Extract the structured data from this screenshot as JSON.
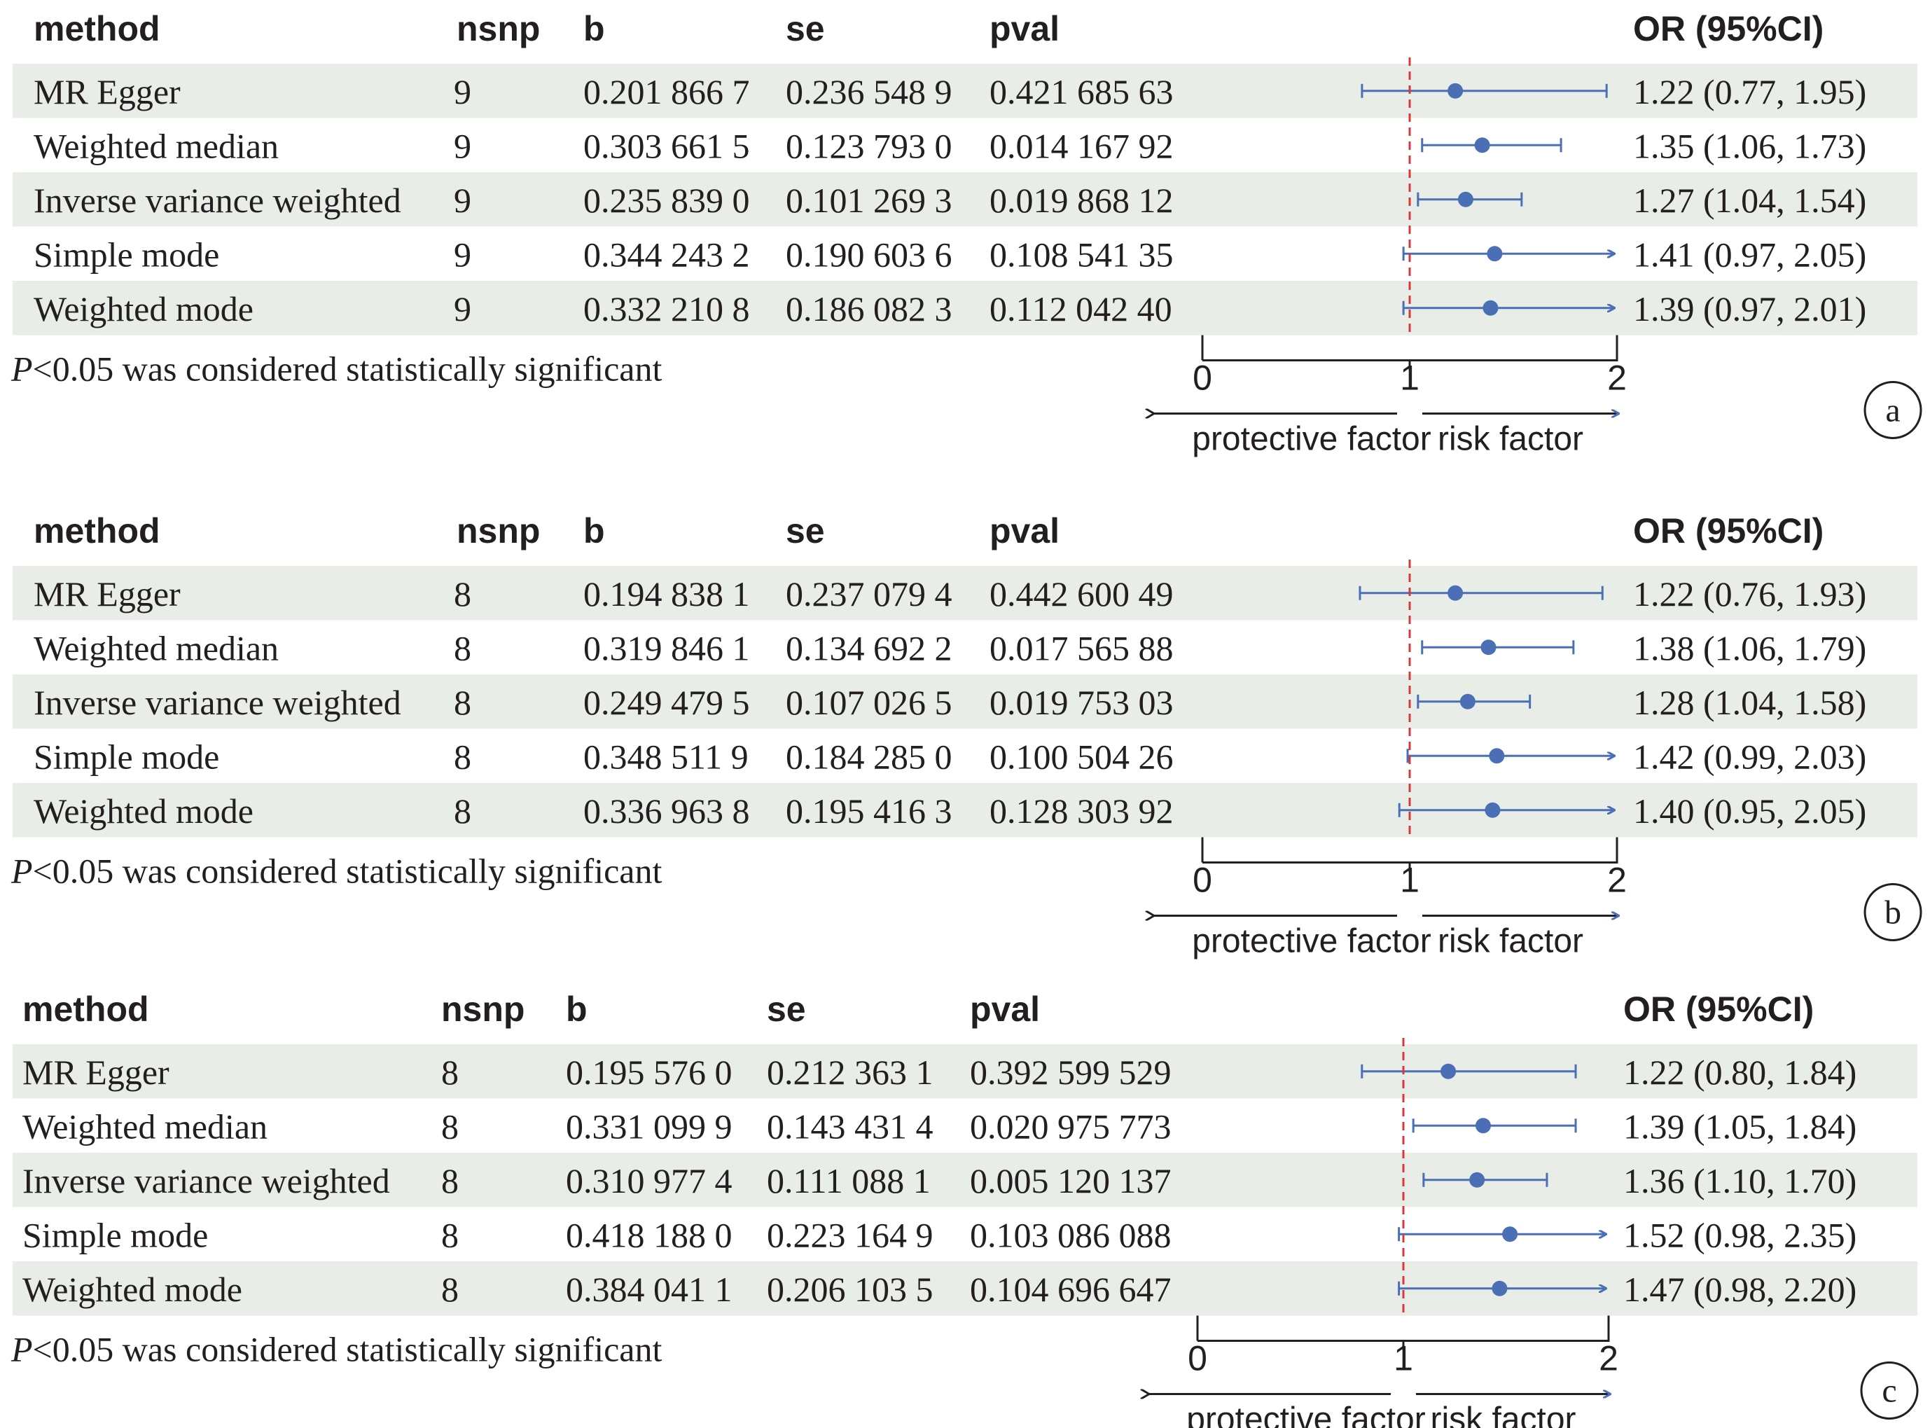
{
  "headers": {
    "method": "method",
    "nsnp": "nsnp",
    "b": "b",
    "se": "se",
    "pval": "pval",
    "or": "OR (95%CI)"
  },
  "footnote_p": "P",
  "footnote_rest": "<0.05 was considered statistically significant",
  "axis": {
    "ticks": [
      "0",
      "1",
      "2"
    ],
    "left_label": "protective factor",
    "right_label": "risk factor"
  },
  "colors": {
    "row_shade": "#e9ede8",
    "point": "#4a6fb4",
    "ref_line": "#d9383a",
    "text": "#231f20"
  },
  "panels": [
    {
      "label": "a",
      "rows": [
        {
          "method": "MR Egger",
          "nsnp": "9",
          "b": "0.201 866 7",
          "se": "0.236 548 9",
          "pval": "0.421 685 63",
          "or_text": "1.22 (0.77, 1.95)",
          "or": 1.22,
          "lo": 0.77,
          "hi": 1.95,
          "arrow": false
        },
        {
          "method": "Weighted median",
          "nsnp": "9",
          "b": "0.303 661 5",
          "se": "0.123 793 0",
          "pval": "0.014 167 92",
          "or_text": "1.35 (1.06, 1.73)",
          "or": 1.35,
          "lo": 1.06,
          "hi": 1.73,
          "arrow": false
        },
        {
          "method": "Inverse variance weighted",
          "nsnp": "9",
          "b": "0.235 839 0",
          "se": "0.101 269 3",
          "pval": "0.019 868 12",
          "or_text": "1.27 (1.04, 1.54)",
          "or": 1.27,
          "lo": 1.04,
          "hi": 1.54,
          "arrow": false
        },
        {
          "method": "Simple mode",
          "nsnp": "9",
          "b": "0.344 243 2",
          "se": "0.190 603 6",
          "pval": "0.108 541 35",
          "or_text": "1.41 (0.97, 2.05)",
          "or": 1.41,
          "lo": 0.97,
          "hi": 2.05,
          "arrow": true
        },
        {
          "method": "Weighted mode",
          "nsnp": "9",
          "b": "0.332 210 8",
          "se": "0.186 082 3",
          "pval": "0.112 042 40",
          "or_text": "1.39 (0.97, 2.01)",
          "or": 1.39,
          "lo": 0.97,
          "hi": 2.01,
          "arrow": true
        }
      ]
    },
    {
      "label": "b",
      "rows": [
        {
          "method": "MR Egger",
          "nsnp": "8",
          "b": "0.194 838 1",
          "se": "0.237 079 4",
          "pval": "0.442 600 49",
          "or_text": "1.22 (0.76, 1.93)",
          "or": 1.22,
          "lo": 0.76,
          "hi": 1.93,
          "arrow": false
        },
        {
          "method": "Weighted median",
          "nsnp": "8",
          "b": "0.319 846 1",
          "se": "0.134 692 2",
          "pval": "0.017 565 88",
          "or_text": "1.38 (1.06, 1.79)",
          "or": 1.38,
          "lo": 1.06,
          "hi": 1.79,
          "arrow": false
        },
        {
          "method": "Inverse variance weighted",
          "nsnp": "8",
          "b": "0.249 479 5",
          "se": "0.107 026 5",
          "pval": "0.019 753 03",
          "or_text": "1.28 (1.04, 1.58)",
          "or": 1.28,
          "lo": 1.04,
          "hi": 1.58,
          "arrow": false
        },
        {
          "method": "Simple mode",
          "nsnp": "8",
          "b": "0.348 511 9",
          "se": "0.184 285 0",
          "pval": "0.100 504 26",
          "or_text": "1.42 (0.99, 2.03)",
          "or": 1.42,
          "lo": 0.99,
          "hi": 2.03,
          "arrow": true
        },
        {
          "method": "Weighted mode",
          "nsnp": "8",
          "b": "0.336 963 8",
          "se": "0.195 416 3",
          "pval": "0.128 303 92",
          "or_text": "1.40 (0.95, 2.05)",
          "or": 1.4,
          "lo": 0.95,
          "hi": 2.05,
          "arrow": true
        }
      ]
    },
    {
      "label": "c",
      "rows": [
        {
          "method": "MR Egger",
          "nsnp": "8",
          "b": "0.195 576 0",
          "se": "0.212 363 1",
          "pval": "0.392 599 529",
          "or_text": "1.22 (0.80, 1.84)",
          "or": 1.22,
          "lo": 0.8,
          "hi": 1.84,
          "arrow": false
        },
        {
          "method": "Weighted median",
          "nsnp": "8",
          "b": "0.331 099 9",
          "se": "0.143 431 4",
          "pval": "0.020 975 773",
          "or_text": "1.39 (1.05, 1.84)",
          "or": 1.39,
          "lo": 1.05,
          "hi": 1.84,
          "arrow": false
        },
        {
          "method": "Inverse variance weighted",
          "nsnp": "8",
          "b": "0.310 977 4",
          "se": "0.111 088 1",
          "pval": "0.005 120 137",
          "or_text": "1.36 (1.10, 1.70)",
          "or": 1.36,
          "lo": 1.1,
          "hi": 1.7,
          "arrow": false
        },
        {
          "method": "Simple mode",
          "nsnp": "8",
          "b": "0.418 188 0",
          "se": "0.223 164 9",
          "pval": "0.103 086 088",
          "or_text": "1.52 (0.98, 2.35)",
          "or": 1.52,
          "lo": 0.98,
          "hi": 2.35,
          "arrow": true
        },
        {
          "method": "Weighted mode",
          "nsnp": "8",
          "b": "0.384 041 1",
          "se": "0.206 103 5",
          "pval": "0.104 696 647",
          "or_text": "1.47 (0.98, 2.20)",
          "or": 1.47,
          "lo": 0.98,
          "hi": 2.2,
          "arrow": true
        }
      ]
    }
  ],
  "chart_data": [
    {
      "type": "forest",
      "panel": "a",
      "categories": [
        "MR Egger",
        "Weighted median",
        "Inverse variance weighted",
        "Simple mode",
        "Weighted mode"
      ],
      "or": [
        1.22,
        1.35,
        1.27,
        1.41,
        1.39
      ],
      "ci_low": [
        0.77,
        1.06,
        1.04,
        0.97,
        0.97
      ],
      "ci_high": [
        1.95,
        1.73,
        1.54,
        2.05,
        2.01
      ],
      "xlim": [
        0,
        2
      ],
      "xticks": [
        0,
        1,
        2
      ],
      "reference_line": 1
    },
    {
      "type": "forest",
      "panel": "b",
      "categories": [
        "MR Egger",
        "Weighted median",
        "Inverse variance weighted",
        "Simple mode",
        "Weighted mode"
      ],
      "or": [
        1.22,
        1.38,
        1.28,
        1.42,
        1.4
      ],
      "ci_low": [
        0.76,
        1.06,
        1.04,
        0.99,
        0.95
      ],
      "ci_high": [
        1.93,
        1.79,
        1.58,
        2.03,
        2.05
      ],
      "xlim": [
        0,
        2
      ],
      "xticks": [
        0,
        1,
        2
      ],
      "reference_line": 1
    },
    {
      "type": "forest",
      "panel": "c",
      "categories": [
        "MR Egger",
        "Weighted median",
        "Inverse variance weighted",
        "Simple mode",
        "Weighted mode"
      ],
      "or": [
        1.22,
        1.39,
        1.36,
        1.52,
        1.47
      ],
      "ci_low": [
        0.8,
        1.05,
        1.1,
        0.98,
        0.98
      ],
      "ci_high": [
        1.84,
        1.84,
        1.7,
        2.35,
        2.2
      ],
      "xlim": [
        0,
        2
      ],
      "xticks": [
        0,
        1,
        2
      ],
      "reference_line": 1
    }
  ]
}
